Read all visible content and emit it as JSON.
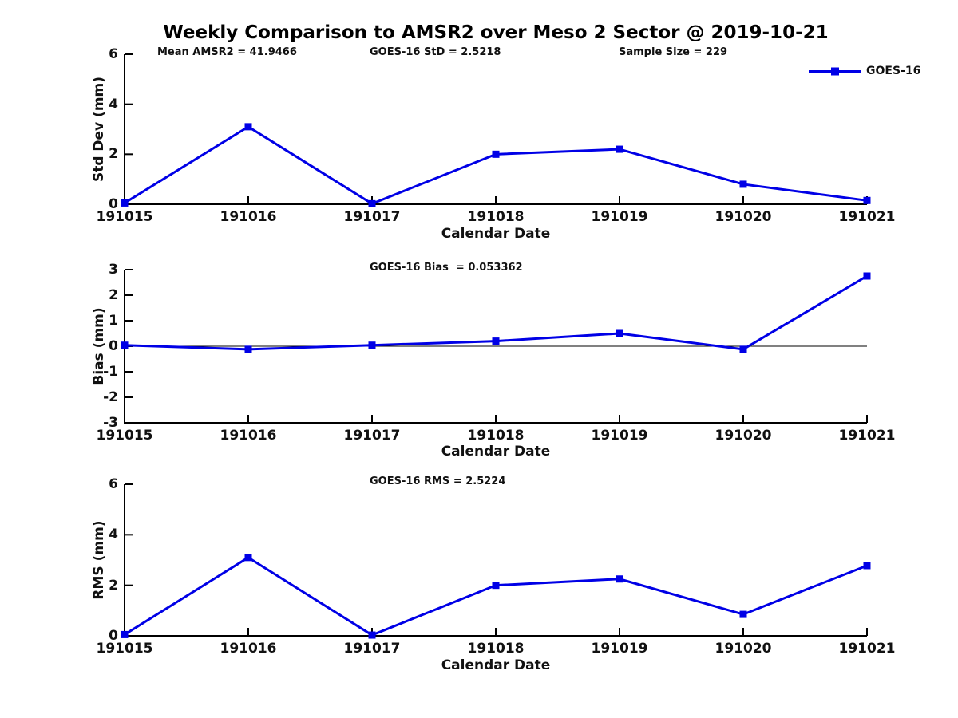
{
  "title": "Weekly Comparison to AMSR2 over Meso 2 Sector @ 2019-10-21",
  "annotations": {
    "mean_amsr2": "Mean AMSR2 = 41.9466",
    "goes16_std": "GOES-16 StD = 2.5218",
    "sample_size": "Sample Size = 229",
    "goes16_bias": "GOES-16 Bias  = 0.053362",
    "goes16_rms": "GOES-16 RMS = 2.5224"
  },
  "legend": {
    "label": "GOES-16",
    "position": "top-right",
    "marker": "square"
  },
  "colors": {
    "series_blue": "#0000E6",
    "axis": "#000000",
    "text": "#111111",
    "background": "#ffffff"
  },
  "chart_data": [
    {
      "type": "line",
      "title": "",
      "categories": [
        "191015",
        "191016",
        "191017",
        "191018",
        "191019",
        "191020",
        "191021"
      ],
      "series": [
        {
          "name": "GOES-16",
          "values": [
            0.05,
            3.1,
            0.02,
            2.0,
            2.2,
            0.8,
            0.15
          ]
        }
      ],
      "xlabel": "Calendar Date",
      "ylabel": "Std Dev (mm)",
      "ylim": [
        0,
        6
      ],
      "yticks": [
        0,
        2,
        4,
        6
      ],
      "grid": false,
      "marker": "square",
      "zero_line": false,
      "legend_position": "top-right-outside"
    },
    {
      "type": "line",
      "title": "",
      "categories": [
        "191015",
        "191016",
        "191017",
        "191018",
        "191019",
        "191020",
        "191021"
      ],
      "series": [
        {
          "name": "GOES-16",
          "values": [
            0.04,
            -0.12,
            0.04,
            0.2,
            0.5,
            -0.12,
            2.75
          ]
        }
      ],
      "xlabel": "Calendar Date",
      "ylabel": "Bias (mm)",
      "ylim": [
        -3,
        3
      ],
      "yticks": [
        -3,
        -2,
        -1,
        0,
        1,
        2,
        3
      ],
      "grid": false,
      "marker": "square",
      "zero_line": true
    },
    {
      "type": "line",
      "title": "",
      "categories": [
        "191015",
        "191016",
        "191017",
        "191018",
        "191019",
        "191020",
        "191021"
      ],
      "series": [
        {
          "name": "GOES-16",
          "values": [
            0.05,
            3.1,
            0.03,
            2.0,
            2.25,
            0.85,
            2.78
          ]
        }
      ],
      "xlabel": "Calendar Date",
      "ylabel": "RMS (mm)",
      "ylim": [
        0,
        6
      ],
      "yticks": [
        0,
        2,
        4,
        6
      ],
      "grid": false,
      "marker": "square",
      "zero_line": false
    }
  ]
}
